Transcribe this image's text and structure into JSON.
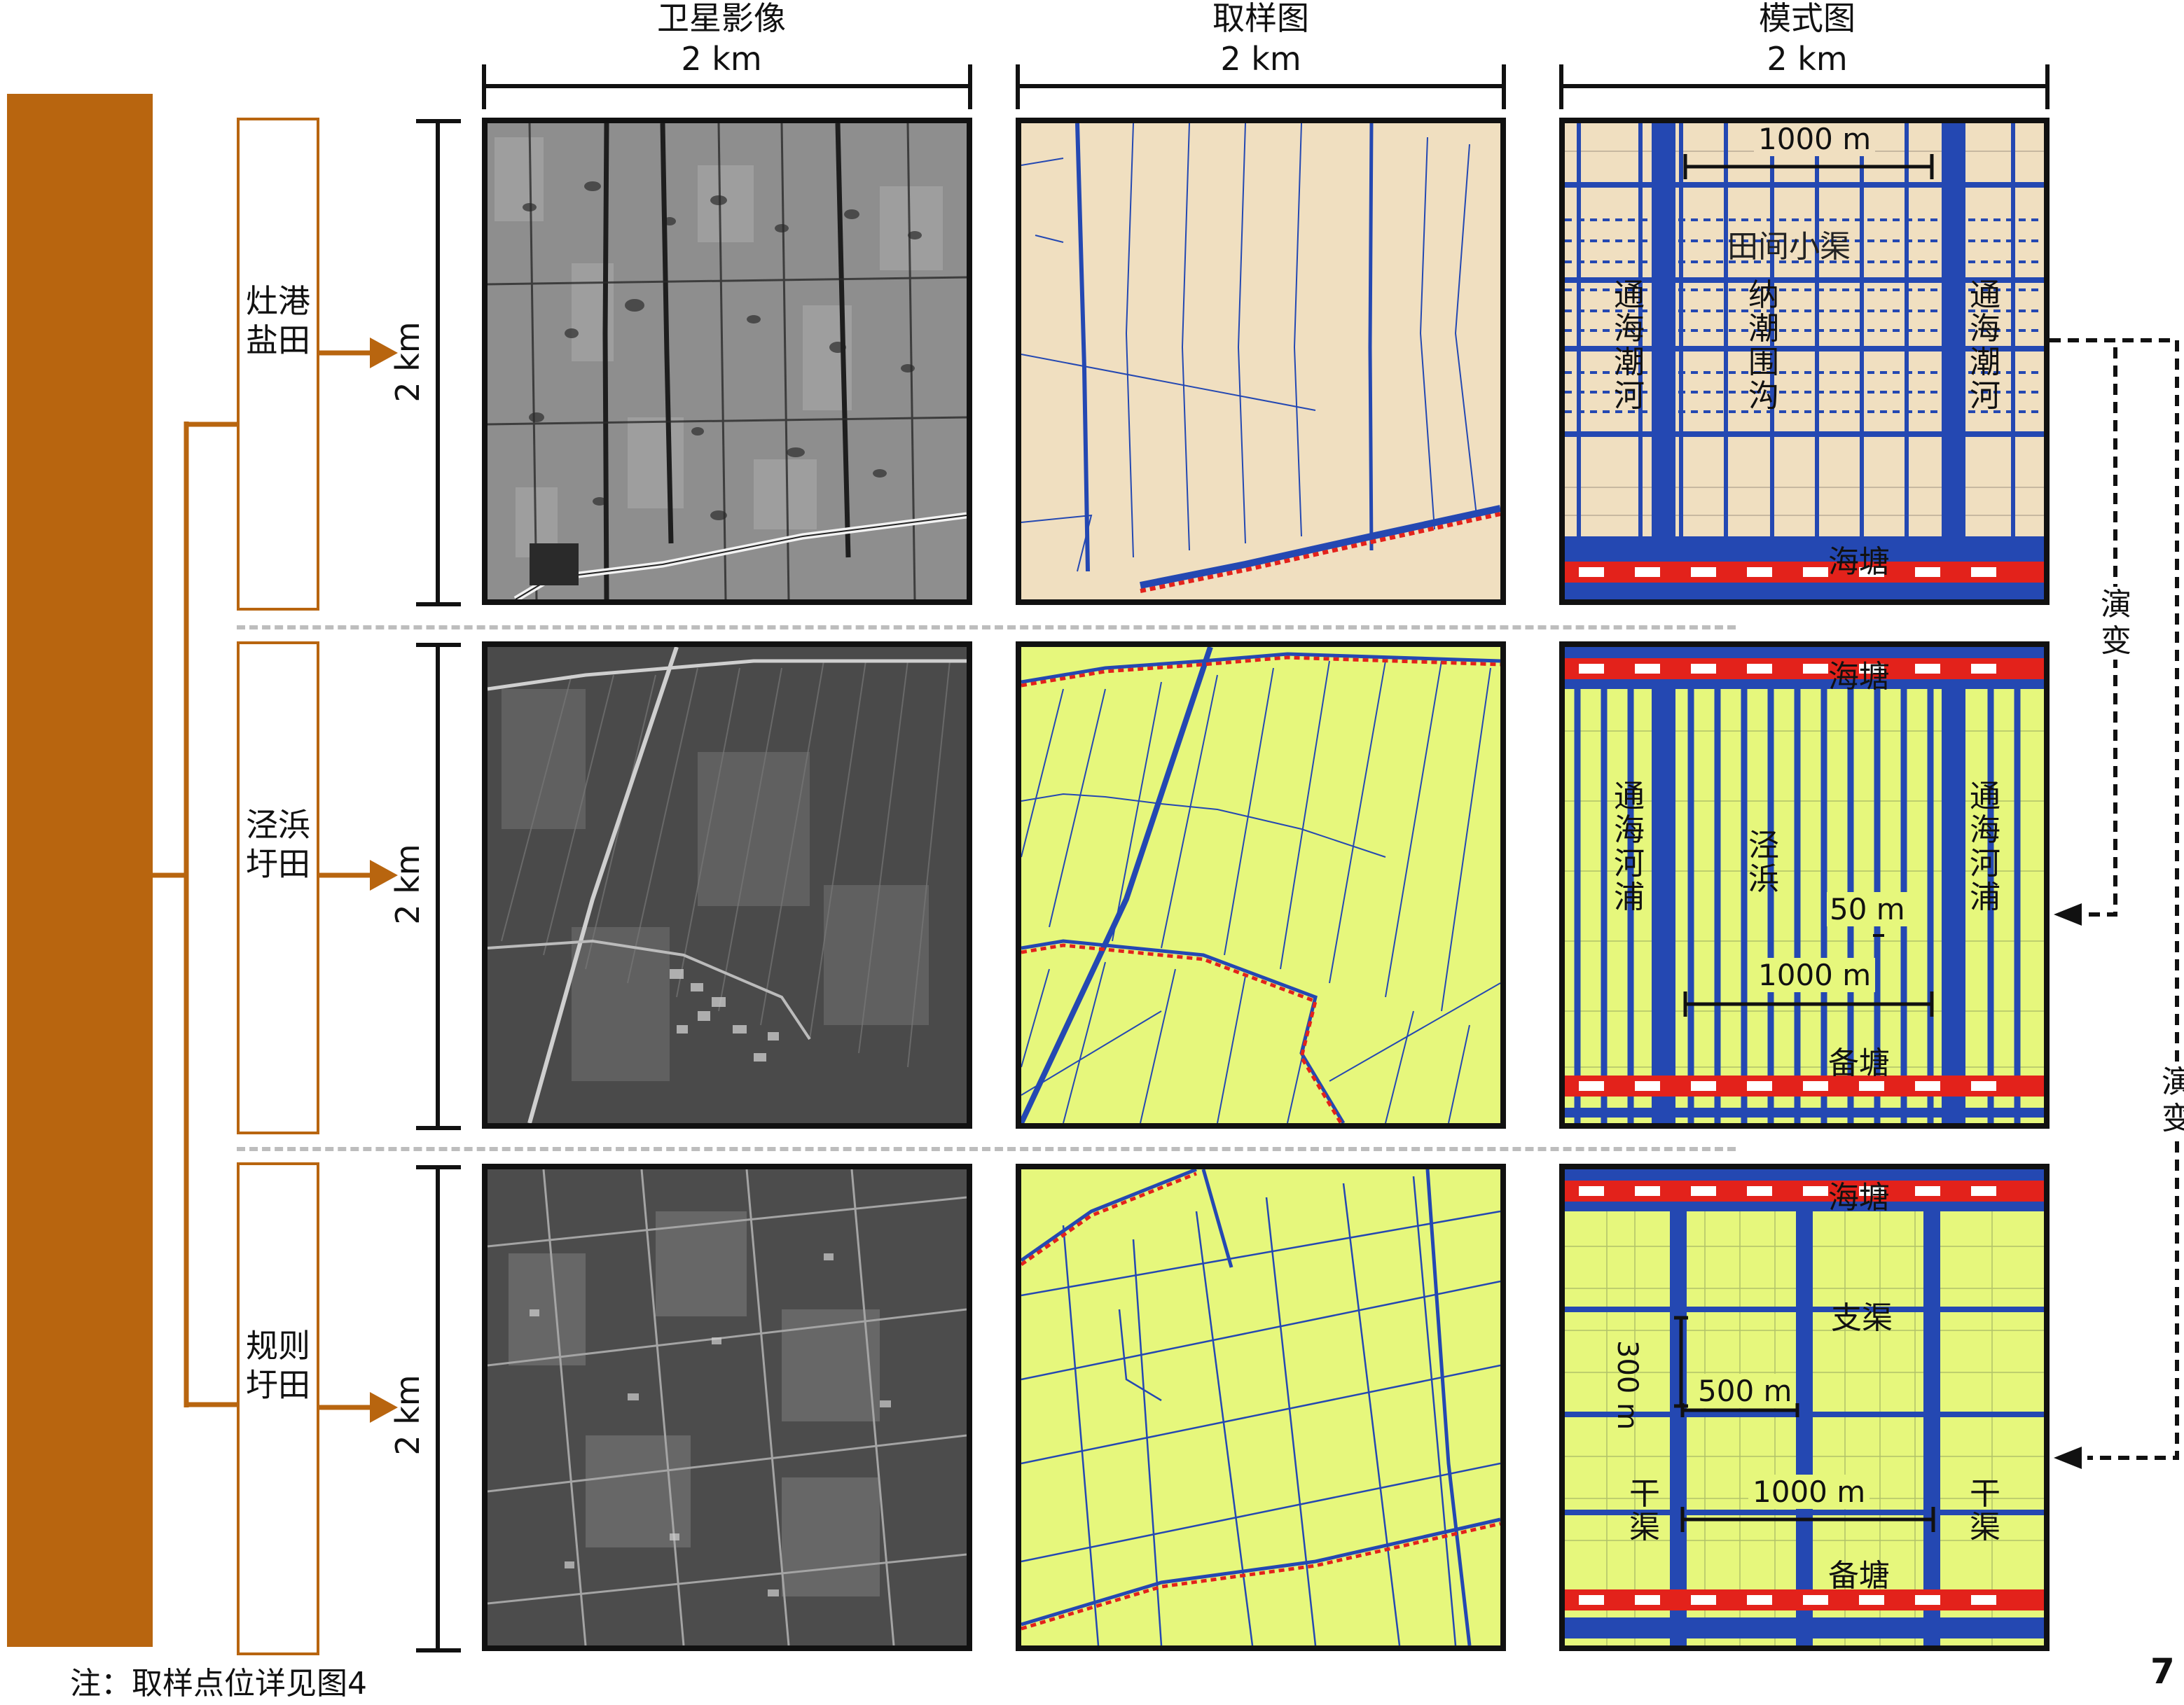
{
  "columns": {
    "satellite": {
      "title": "卫星影像",
      "scale": "2 km"
    },
    "sample": {
      "title": "取样图",
      "scale": "2 km"
    },
    "model": {
      "title": "模式图",
      "scale": "2 km"
    }
  },
  "rows": [
    {
      "label": "灶港盐田",
      "scale": "2 km"
    },
    {
      "label": "泾浜圩田",
      "scale": "2 km"
    },
    {
      "label": "规则圩田",
      "scale": "2 km"
    }
  ],
  "model1": {
    "span": "1000 m",
    "ditch": "田间小渠",
    "river_left": "通海潮河",
    "mid": "纳潮围沟",
    "river_right": "通海潮河",
    "dike": "海塘"
  },
  "model2": {
    "dike": "海塘",
    "river_left": "通海河浦",
    "mid": "泾浜",
    "river_right": "通海河浦",
    "small": "50 m",
    "span": "1000 m",
    "reserve": "备塘"
  },
  "model3": {
    "dike": "海塘",
    "branch": "支渠",
    "v300": "300 m",
    "h500": "500 m",
    "main_left": "干渠",
    "span": "1000 m",
    "main_right": "干渠",
    "reserve": "备塘"
  },
  "evolution": {
    "label1": "演变",
    "label2": "演变"
  },
  "note": "注：取样点位详见图4",
  "page_number": "7",
  "colors": {
    "trunk": "#b8650f",
    "sand": "#f0dfc0",
    "field": "#e6f77c",
    "water": "#2448b2",
    "dike": "#e3221b"
  }
}
